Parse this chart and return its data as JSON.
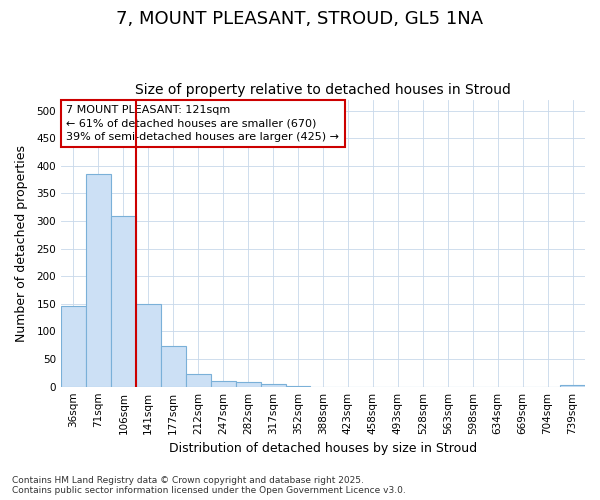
{
  "title": "7, MOUNT PLEASANT, STROUD, GL5 1NA",
  "subtitle": "Size of property relative to detached houses in Stroud",
  "xlabel": "Distribution of detached houses by size in Stroud",
  "ylabel": "Number of detached properties",
  "categories": [
    "36sqm",
    "71sqm",
    "106sqm",
    "141sqm",
    "177sqm",
    "212sqm",
    "247sqm",
    "282sqm",
    "317sqm",
    "352sqm",
    "388sqm",
    "423sqm",
    "458sqm",
    "493sqm",
    "528sqm",
    "563sqm",
    "598sqm",
    "634sqm",
    "669sqm",
    "704sqm",
    "739sqm"
  ],
  "values": [
    147,
    386,
    310,
    149,
    74,
    23,
    10,
    8,
    4,
    1,
    0,
    0,
    0,
    0,
    0,
    0,
    0,
    0,
    0,
    0,
    3
  ],
  "bar_color": "#cce0f5",
  "bar_edge_color": "#7ab0d8",
  "grid_color": "#c8d8ea",
  "background_color": "#ffffff",
  "plot_bg_color": "#ffffff",
  "vline_x": 2.5,
  "vline_color": "#cc0000",
  "annotation_line1": "7 MOUNT PLEASANT: 121sqm",
  "annotation_line2": "← 61% of detached houses are smaller (670)",
  "annotation_line3": "39% of semi-detached houses are larger (425) →",
  "annotation_box_color": "#cc0000",
  "ylim": [
    0,
    520
  ],
  "yticks": [
    0,
    50,
    100,
    150,
    200,
    250,
    300,
    350,
    400,
    450,
    500
  ],
  "footer": "Contains HM Land Registry data © Crown copyright and database right 2025.\nContains public sector information licensed under the Open Government Licence v3.0.",
  "title_fontsize": 13,
  "subtitle_fontsize": 10,
  "tick_fontsize": 7.5,
  "label_fontsize": 9,
  "footer_fontsize": 6.5
}
